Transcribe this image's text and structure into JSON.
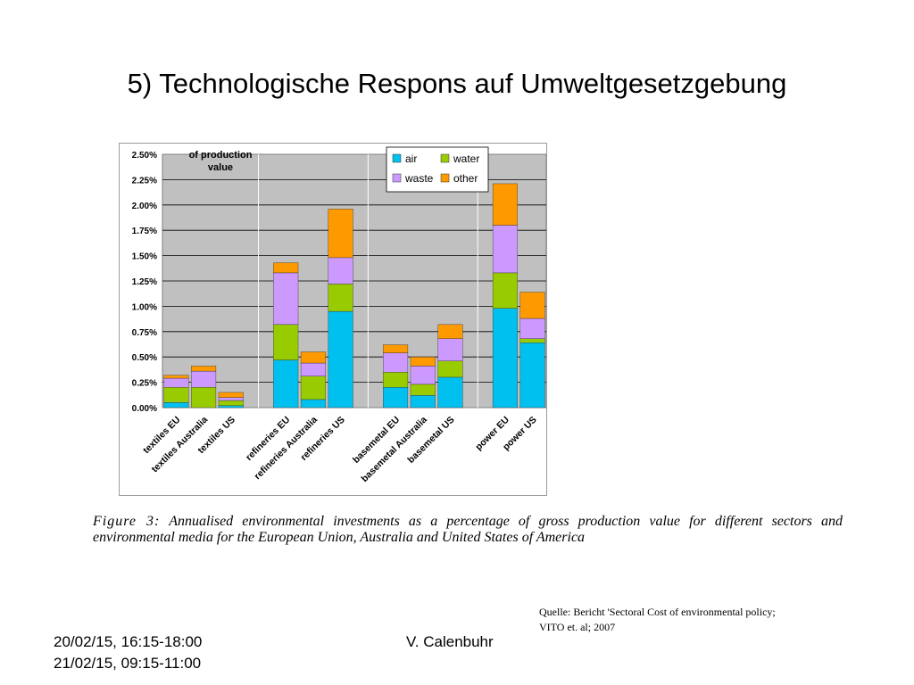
{
  "slide": {
    "title": "5) Technologische Respons auf Umweltgesetzgebung",
    "caption_label": "Figure 3:",
    "caption_text": "Annualised environmental investments as a percentage of gross production value for different sectors and environmental media for the European Union, Australia and United States of America",
    "source_line1": "Quelle: Bericht 'Sectoral Cost of environmental policy;",
    "source_line2": "VITO et. al; 2007",
    "date_line1": "20/02/15, 16:15-18:00",
    "date_line2": "21/02/15, 09:15-11:00",
    "author": "V. Calenbuhr"
  },
  "chart_data": {
    "type": "bar",
    "stacked": true,
    "title": "of production value",
    "ylim": [
      0,
      2.5
    ],
    "yticks": [
      "0.00%",
      "0.25%",
      "0.50%",
      "0.75%",
      "1.00%",
      "1.25%",
      "1.50%",
      "1.75%",
      "2.00%",
      "2.25%",
      "2.50%"
    ],
    "grid": true,
    "legend_position": "top-right",
    "categories": [
      "textiles EU",
      "textiles Australia",
      "textiles US",
      "refineries EU",
      "refineries Australia",
      "refineries US",
      "basemetal EU",
      "basemetal Australia",
      "basemetal US",
      "power EU",
      "power US"
    ],
    "groups": [
      3,
      3,
      3,
      2
    ],
    "series": [
      {
        "name": "air",
        "color": "#00c0f0",
        "values": [
          0.05,
          0.0,
          0.02,
          0.47,
          0.08,
          0.95,
          0.2,
          0.12,
          0.3,
          0.98,
          0.64
        ]
      },
      {
        "name": "water",
        "color": "#99cc00",
        "values": [
          0.15,
          0.2,
          0.05,
          0.35,
          0.23,
          0.27,
          0.15,
          0.11,
          0.16,
          0.35,
          0.04
        ]
      },
      {
        "name": "waste",
        "color": "#cc99ff",
        "values": [
          0.09,
          0.16,
          0.03,
          0.51,
          0.13,
          0.26,
          0.19,
          0.18,
          0.22,
          0.47,
          0.2
        ]
      },
      {
        "name": "other",
        "color": "#ff9900",
        "values": [
          0.03,
          0.05,
          0.05,
          0.1,
          0.11,
          0.48,
          0.08,
          0.09,
          0.14,
          0.41,
          0.26
        ]
      }
    ]
  }
}
